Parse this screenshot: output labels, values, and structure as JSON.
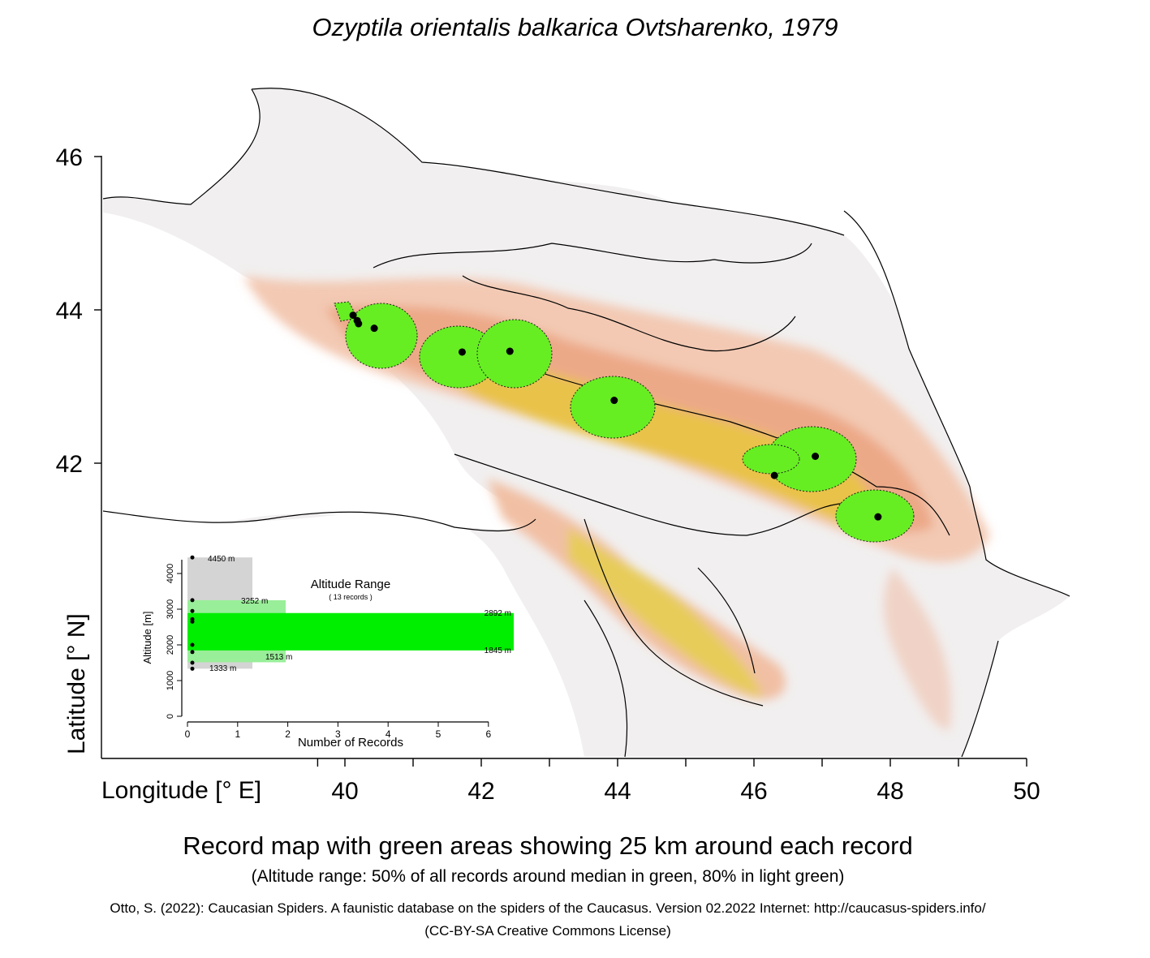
{
  "title": "Ozyptila orientalis balkarica Ovtsharenko, 1979",
  "axes": {
    "y_label": "Latitude [° N]",
    "x_label": "Longitude [° E]",
    "y_ticks": [
      "46",
      "44",
      "42"
    ],
    "x_ticks": [
      "40",
      "42",
      "44",
      "46",
      "48",
      "50"
    ]
  },
  "map": {
    "records": [
      {
        "lon": 40.12,
        "lat": 43.93
      },
      {
        "lon": 40.18,
        "lat": 43.86
      },
      {
        "lon": 40.2,
        "lat": 43.82
      },
      {
        "lon": 40.43,
        "lat": 43.76
      },
      {
        "lon": 41.72,
        "lat": 43.45
      },
      {
        "lon": 42.42,
        "lat": 43.46
      },
      {
        "lon": 43.95,
        "lat": 42.82
      },
      {
        "lon": 46.3,
        "lat": 41.84
      },
      {
        "lon": 46.9,
        "lat": 42.09
      },
      {
        "lon": 47.82,
        "lat": 41.3
      }
    ],
    "colors": {
      "low": "#f2f0f0",
      "mid": "#f0b898",
      "high": "#e8d84a",
      "buffer": "#66ee22",
      "record": "#000000"
    }
  },
  "inset": {
    "title": "Altitude Range",
    "subtitle": "( 13 records )",
    "y_label": "Altitude [m]",
    "x_label": "Number of Records",
    "y_ticks": [
      "0",
      "1000",
      "2000",
      "3000",
      "4000"
    ],
    "x_ticks": [
      "0",
      "1",
      "2",
      "3",
      "4",
      "5",
      "6"
    ],
    "labels": {
      "max": "4450  m",
      "p90": "3252  m",
      "p75": "2892  m",
      "p25": "1845  m",
      "p10": "1513  m",
      "min": "1333  m"
    },
    "ranges": {
      "full": [
        1333,
        4450
      ],
      "r80": [
        1513,
        3252
      ],
      "r50": [
        1845,
        2892
      ]
    },
    "record_altitudes": [
      4450,
      3252,
      2950,
      2720,
      2650,
      2000,
      1800,
      1500,
      1333
    ],
    "colors": {
      "full": "#d4d4d4",
      "r80": "#99ee99",
      "r50": "#00ee00"
    }
  },
  "caption": {
    "line1": "Record map with green areas showing 25 km around each record",
    "line2": "(Altitude range: 50% of all records around median in green, 80% in light green)"
  },
  "credit": {
    "line1": "Otto, S. (2022): Caucasian Spiders. A faunistic database on the spiders of the Caucasus. Version 02.2022 Internet: http://caucasus-spiders.info/",
    "line2": "(CC-BY-SA Creative Commons License)"
  }
}
